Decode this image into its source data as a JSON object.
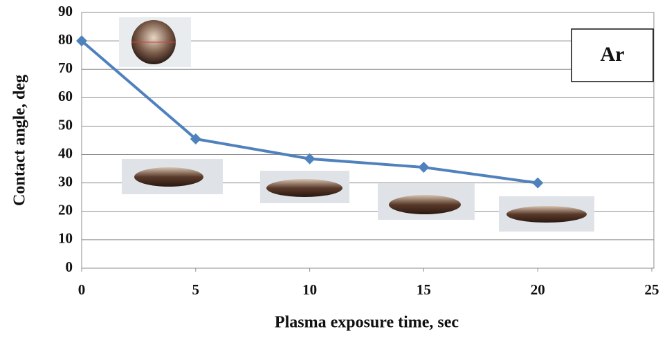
{
  "chart_data": {
    "type": "line",
    "x_label": "Plasma  exposure time, sec",
    "y_label": "Contact  angle, deg",
    "annotation": "Ar",
    "x": [
      0,
      5,
      10,
      15,
      20
    ],
    "values": [
      80,
      45.5,
      38.5,
      35.5,
      30
    ],
    "color": "#4f81bd",
    "xlim": [
      0,
      25
    ],
    "xticks": [
      0,
      5,
      10,
      15,
      20,
      25
    ],
    "ylim": [
      0,
      90
    ],
    "yticks": [
      0,
      10,
      20,
      30,
      40,
      50,
      60,
      70,
      80,
      90
    ],
    "grid": true
  }
}
